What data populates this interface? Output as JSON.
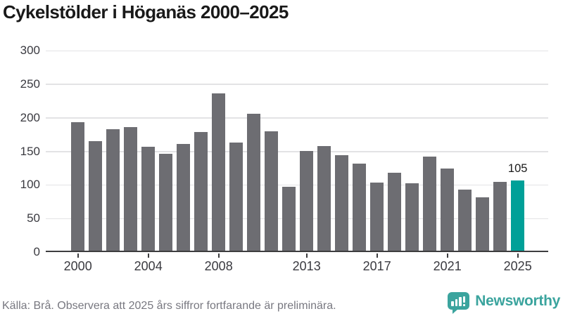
{
  "title": "Cykelstölder i Höganäs 2000–2025",
  "chart_data": {
    "type": "bar",
    "title": "Cykelstölder i Höganäs 2000–2025",
    "categories": [
      2000,
      2001,
      2002,
      2003,
      2004,
      2005,
      2006,
      2007,
      2008,
      2009,
      2010,
      2011,
      2012,
      2013,
      2014,
      2015,
      2016,
      2017,
      2018,
      2019,
      2020,
      2021,
      2022,
      2023,
      2024,
      2025
    ],
    "values": [
      191,
      163,
      181,
      184,
      155,
      144,
      159,
      177,
      234,
      161,
      204,
      178,
      95,
      148,
      156,
      142,
      130,
      101,
      116,
      100,
      140,
      122,
      91,
      79,
      102,
      105
    ],
    "xlabel": "",
    "ylabel": "",
    "ylim": [
      0,
      300
    ],
    "yticks": [
      0,
      50,
      100,
      150,
      200,
      250,
      300
    ],
    "xticks": [
      2000,
      2004,
      2008,
      2013,
      2017,
      2021,
      2025
    ],
    "grid": true,
    "legend": "none",
    "bar_color": "#6d6d72",
    "highlight_year": 2025,
    "highlight_color": "#00a098",
    "gridline_color": "#e3e3e5",
    "axis_color": "#3d3d3f",
    "annotation": {
      "year": 2025,
      "text": "105"
    }
  },
  "footer": {
    "source": "Källa: Brå. Observera att 2025 års siffror fortfarande är preliminära.",
    "brand": "Newsworthy",
    "brand_color": "#3ba49e"
  }
}
